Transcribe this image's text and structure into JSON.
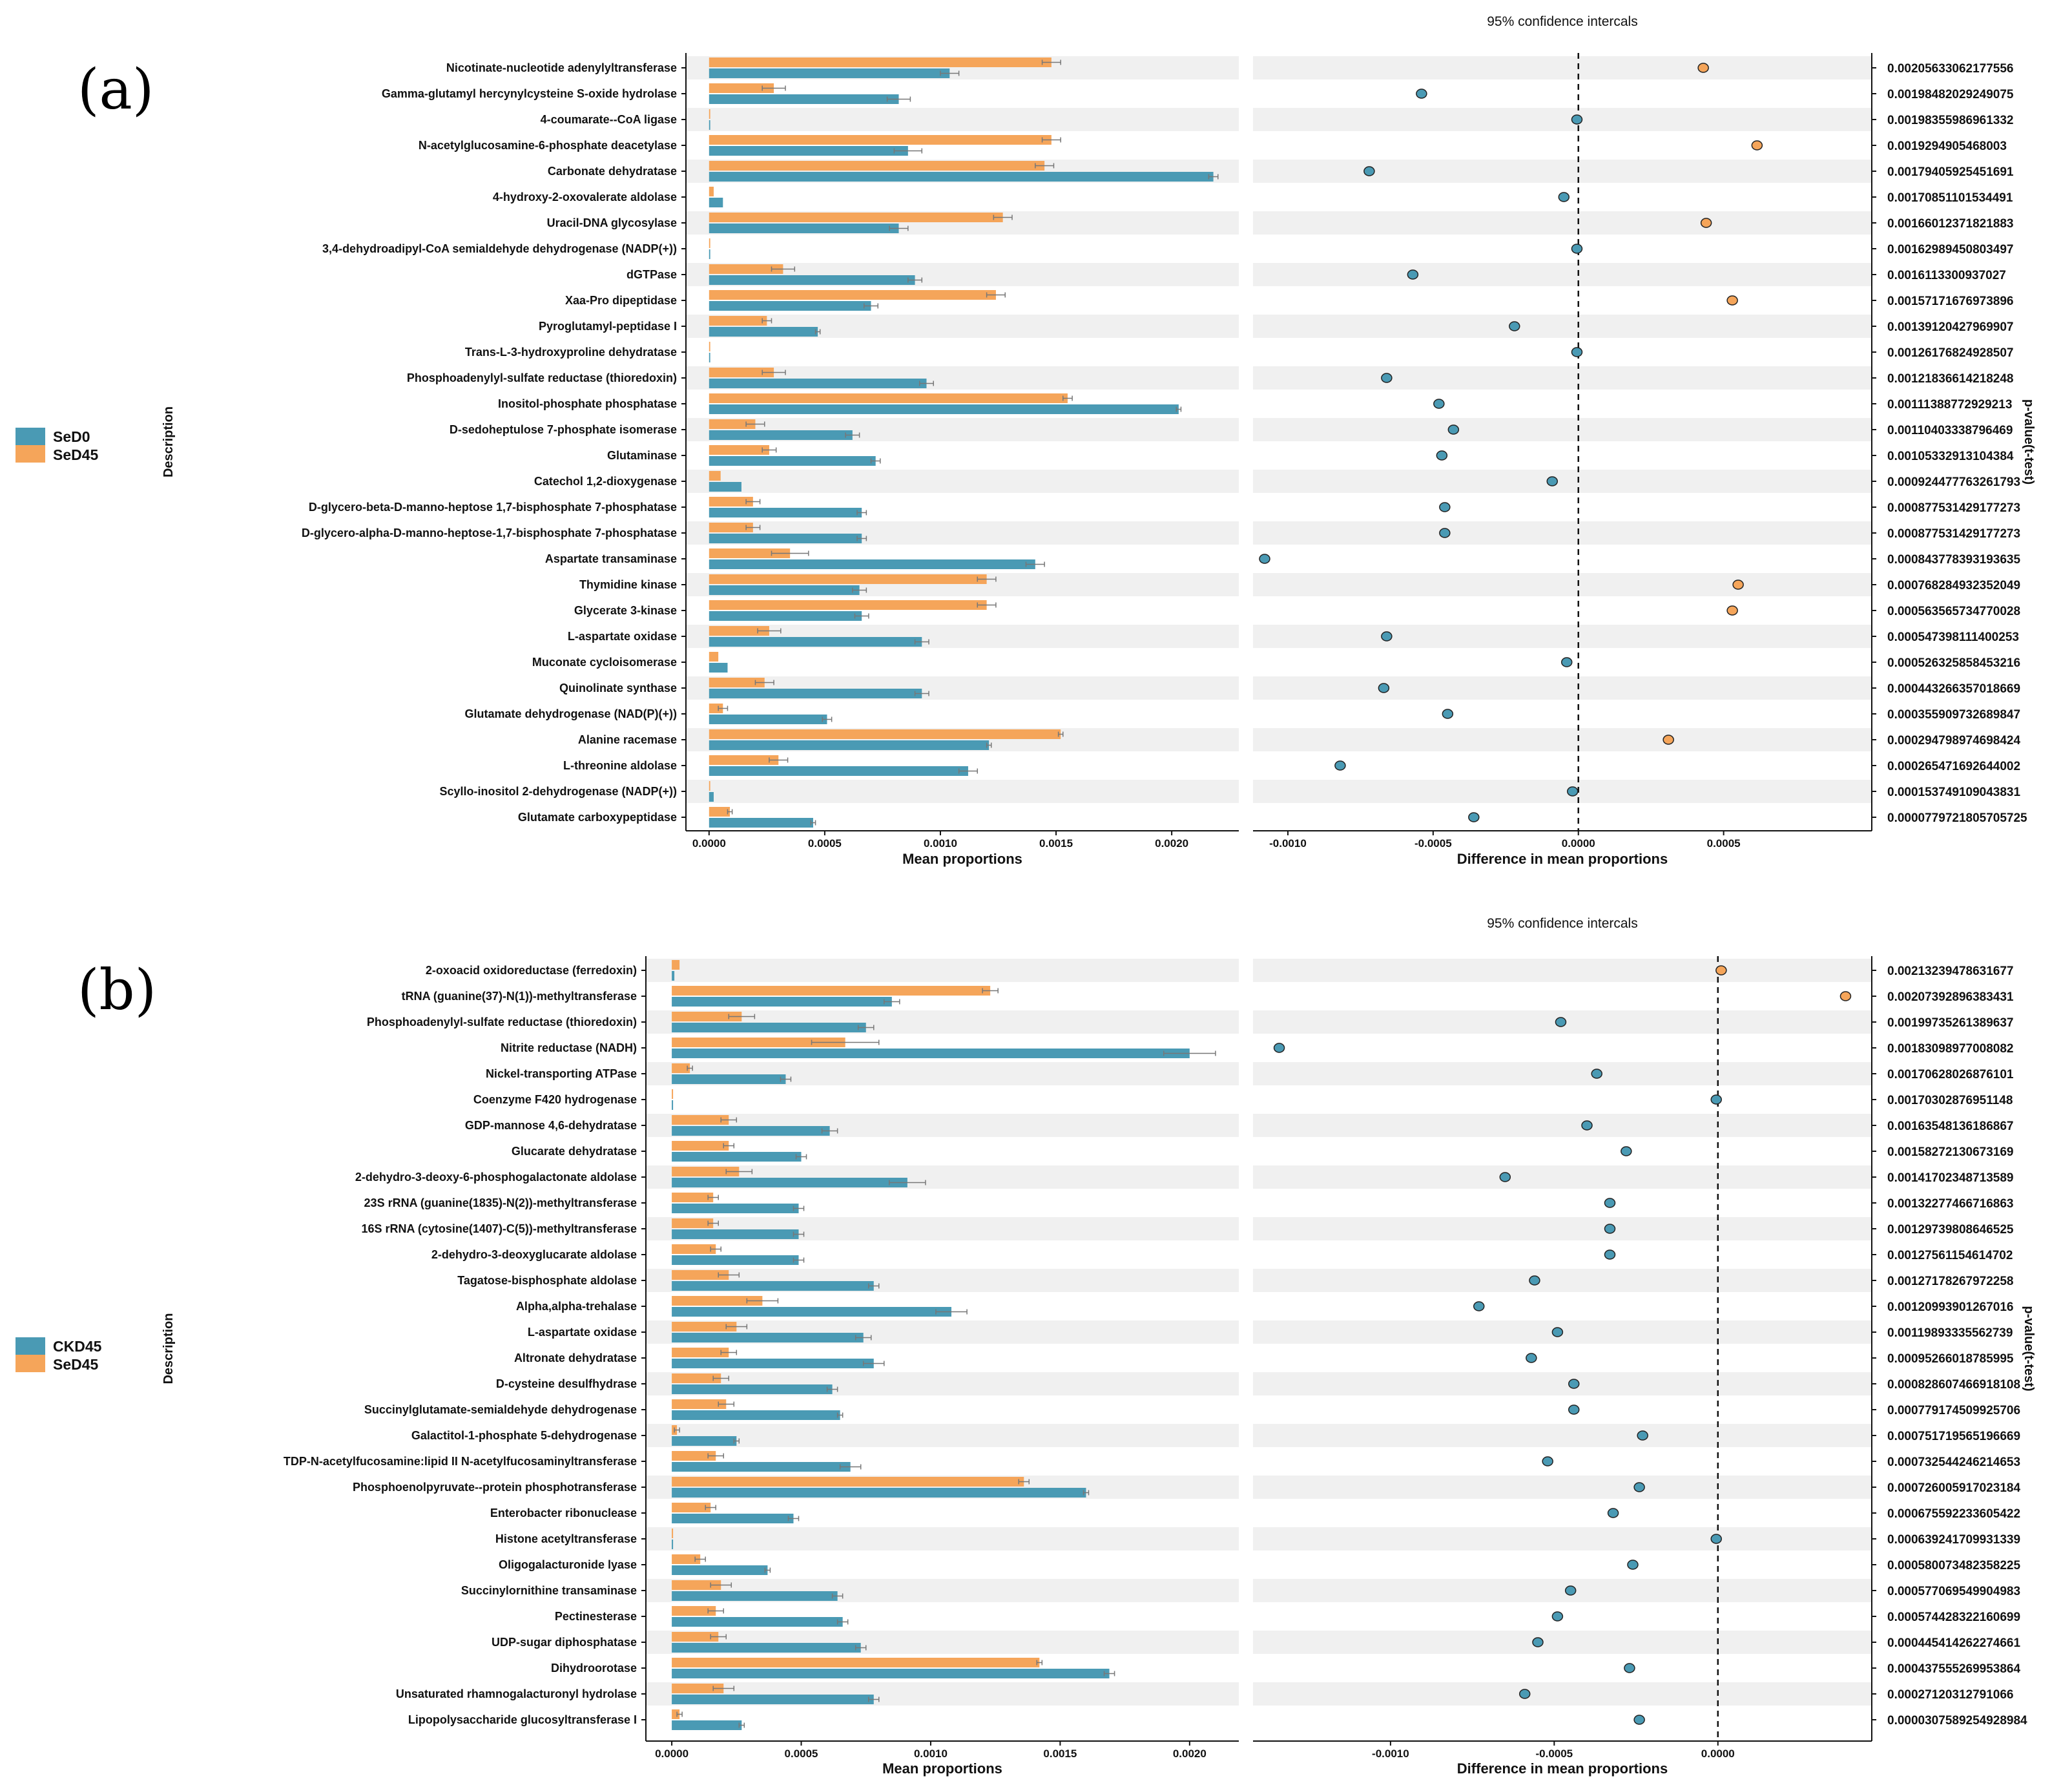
{
  "figure": {
    "colors": {
      "group1": "#4a9ab4",
      "group2": "#f5a55a",
      "stripe": "#f0f0f0",
      "ink": "#111111"
    },
    "panels": [
      {
        "letter": "(a)",
        "ci_title": "95% confidence intercals",
        "left_ylabel": "Description",
        "right_ylabel": "p-value(t-test)",
        "legend": [
          "SeD0",
          "SeD45"
        ]
      },
      {
        "letter": "(b)",
        "ci_title": "95% confidence intercals",
        "left_ylabel": "Description",
        "right_ylabel": "p-value(t-test)",
        "legend": [
          "CKD45",
          "SeD45"
        ]
      }
    ]
  },
  "chart_data": [
    {
      "type": "bar",
      "panel": "(a)",
      "xlabel": "Mean proportions",
      "xlim": [
        -0.0001,
        0.00229
      ],
      "xticks": [
        "0.0000",
        "0.0005",
        "0.0010",
        "0.0015",
        "0.0020"
      ],
      "xtick_values": [
        0,
        0.0005,
        0.001,
        0.0015,
        0.002
      ],
      "categories": [
        "Nicotinate-nucleotide adenylyltransferase",
        "Gamma-glutamyl hercynylcysteine S-oxide hydrolase",
        "4-coumarate--CoA ligase",
        "N-acetylglucosamine-6-phosphate deacetylase",
        "Carbonate dehydratase",
        "4-hydroxy-2-oxovalerate aldolase",
        "Uracil-DNA glycosylase",
        "3,4-dehydroadipyl-CoA semialdehyde dehydrogenase (NADP(+))",
        "dGTPase",
        "Xaa-Pro dipeptidase",
        "Pyroglutamyl-peptidase I",
        "Trans-L-3-hydroxyproline dehydratase",
        "Phosphoadenylyl-sulfate reductase (thioredoxin)",
        "Inositol-phosphate phosphatase",
        "D-sedoheptulose 7-phosphate isomerase",
        "Glutaminase",
        "Catechol 1,2-dioxygenase",
        "D-glycero-beta-D-manno-heptose 1,7-bisphosphate 7-phosphatase",
        "D-glycero-alpha-D-manno-heptose-1,7-bisphosphate 7-phosphatase",
        "Aspartate transaminase",
        "Thymidine kinase",
        "Glycerate 3-kinase",
        "L-aspartate oxidase",
        "Muconate cycloisomerase",
        "Quinolinate synthase",
        "Glutamate dehydrogenase (NAD(P)(+))",
        "Alanine racemase",
        "L-threonine aldolase",
        "Scyllo-inositol 2-dehydrogenase (NADP(+))",
        "Glutamate carboxypeptidase"
      ],
      "series": [
        {
          "name": "SeD0",
          "values": [
            0.00104,
            0.00082,
            5e-06,
            0.00086,
            0.00218,
            6e-05,
            0.00082,
            5e-06,
            0.00089,
            0.0007,
            0.00047,
            5e-06,
            0.00094,
            0.00203,
            0.00062,
            0.00072,
            0.00014,
            0.00066,
            0.00066,
            0.00141,
            0.00065,
            0.00066,
            0.00092,
            8e-05,
            0.00092,
            0.00051,
            0.00121,
            0.00112,
            2e-05,
            0.00045
          ]
        },
        {
          "name": "SeD45",
          "values": [
            0.00148,
            0.00028,
            5e-06,
            0.00148,
            0.00145,
            2e-05,
            0.00127,
            5e-06,
            0.00032,
            0.00124,
            0.00025,
            5e-06,
            0.00028,
            0.00155,
            0.0002,
            0.00026,
            5e-05,
            0.00019,
            0.00019,
            0.00035,
            0.0012,
            0.0012,
            0.00026,
            4e-05,
            0.00024,
            6e-05,
            0.00152,
            0.0003,
            5e-06,
            9e-05
          ]
        }
      ],
      "errors": {
        "SeD0": [
          4e-05,
          5e-05,
          0,
          6e-05,
          2e-05,
          0,
          4e-05,
          0,
          3e-05,
          3e-05,
          1e-05,
          0,
          3e-05,
          1e-05,
          3e-05,
          2e-05,
          0,
          2e-05,
          2e-05,
          4e-05,
          3e-05,
          3e-05,
          3e-05,
          0,
          3e-05,
          2e-05,
          1e-05,
          4e-05,
          0,
          1e-05
        ],
        "SeD45": [
          4e-05,
          5e-05,
          0,
          4e-05,
          4e-05,
          0,
          4e-05,
          0,
          5e-05,
          4e-05,
          2e-05,
          0,
          5e-05,
          2e-05,
          4e-05,
          3e-05,
          0,
          3e-05,
          3e-05,
          8e-05,
          4e-05,
          4e-05,
          5e-05,
          0,
          4e-05,
          2e-05,
          1e-05,
          4e-05,
          0,
          1e-05
        ]
      },
      "diff": {
        "xlabel": "Difference in mean proportions",
        "xlim": [
          -0.00112,
          0.00101
        ],
        "xticks": [
          "-0.0010",
          "-0.0005",
          "0.0000",
          "0.0005"
        ],
        "xtick_values": [
          -0.001,
          -0.0005,
          0,
          0.0005
        ],
        "values": [
          0.00043,
          -0.00054,
          -5e-06,
          0.000615,
          -0.00072,
          -5e-05,
          0.00044,
          -5e-06,
          -0.00057,
          0.00053,
          -0.00022,
          -5e-06,
          -0.00066,
          -0.00048,
          -0.00043,
          -0.00047,
          -9e-05,
          -0.00046,
          -0.00046,
          -0.00108,
          0.00055,
          0.00053,
          -0.00066,
          -4e-05,
          -0.00067,
          -0.00045,
          0.00031,
          -0.00082,
          -2e-05,
          -0.00036
        ],
        "group": [
          "SeD45",
          "SeD0",
          "SeD0",
          "SeD45",
          "SeD0",
          "SeD0",
          "SeD45",
          "SeD0",
          "SeD0",
          "SeD45",
          "SeD0",
          "SeD0",
          "SeD0",
          "SeD0",
          "SeD0",
          "SeD0",
          "SeD0",
          "SeD0",
          "SeD0",
          "SeD0",
          "SeD45",
          "SeD45",
          "SeD0",
          "SeD0",
          "SeD0",
          "SeD0",
          "SeD45",
          "SeD0",
          "SeD0",
          "SeD0"
        ]
      },
      "pvalues": [
        "0.00205633062177556",
        "0.00198482029249075",
        "0.00198355986961332",
        "0.0019294905468003",
        "0.00179405925451691",
        "0.00170851101534491",
        "0.00166012371821883",
        "0.00162989450803497",
        "0.0016113300937027",
        "0.00157171676973896",
        "0.00139120427969907",
        "0.00126176824928507",
        "0.00121836614218248",
        "0.00111388772929213",
        "0.00110403338796469",
        "0.00105332913104384",
        "0.00092447776326179​3",
        "0.000877531429177273",
        "0.000877531429177273",
        "0.000843778393193635",
        "0.000768284932352049",
        "0.00056356573477002​8",
        "0.000547398111400253",
        "0.000526325858453216",
        "0.000443266357018669",
        "0.000355909732689847",
        "0.000294798974698424",
        "0.000265471692644002",
        "0.000153749109043831",
        "0.0000779721805705725"
      ]
    },
    {
      "type": "bar",
      "panel": "(b)",
      "xlabel": "Mean proportions",
      "xlim": [
        -0.0001,
        0.00219
      ],
      "xticks": [
        "0.0000",
        "0.0005",
        "0.0010",
        "0.0015",
        "0.0020"
      ],
      "xtick_values": [
        0,
        0.0005,
        0.001,
        0.0015,
        0.002
      ],
      "categories": [
        "2-oxoacid oxidoreductase (ferredoxin)",
        "tRNA (guanine(37)-N(1))-methyltransferase",
        "Phosphoadenylyl-sulfate reductase (thioredoxin)",
        "Nitrite reductase (NADH)",
        "Nickel-transporting ATPase",
        "Coenzyme F420 hydrogenase",
        "GDP-mannose 4,6-dehydratase",
        "Glucarate dehydratase",
        "2-dehydro-3-deoxy-6-phosphogalactonate aldolase",
        "23S rRNA (guanine(1835)-N(2))-methyltransferase",
        "16S rRNA (cytosine(1407)-C(5))-methyltransferase",
        "2-dehydro-3-deoxyglucarate aldolase",
        "Tagatose-bisphosphate aldolase",
        "Alpha,alpha-trehalase",
        "L-aspartate oxidase",
        "Altronate dehydratase",
        "D-cysteine desulfhydrase",
        "Succinylglutamate-semialdehyde dehydrogenase",
        "Galactitol-1-phosphate 5-dehydrogenase",
        "TDP-N-acetylfucosamine:lipid II N-acetylfucosaminyltransferase",
        "Phosphoenolpyruvate--protein phosphotransferase",
        "Enterobacter ribonuclease",
        "Histone acetyltransferase",
        "Oligogalacturonide lyase",
        "Succinylornithine transaminase",
        "Pectinesterase",
        "UDP-sugar diphosphatase",
        "Dihydroorotase",
        "Unsaturated rhamnogalacturonyl hydrolase",
        "Lipopolysaccharide glucosyltransferase I"
      ],
      "series": [
        {
          "name": "CKD45",
          "values": [
            1e-05,
            0.00085,
            0.00075,
            0.002,
            0.00044,
            5e-06,
            0.00061,
            0.0005,
            0.00091,
            0.00049,
            0.00049,
            0.00049,
            0.00078,
            0.00108,
            0.00074,
            0.00078,
            0.00062,
            0.00065,
            0.00025,
            0.00069,
            0.0016,
            0.00047,
            5e-06,
            0.00037,
            0.00064,
            0.00066,
            0.00073,
            0.00169,
            0.00078,
            0.00027
          ]
        },
        {
          "name": "SeD45",
          "values": [
            3e-05,
            0.00123,
            0.00027,
            0.00067,
            7e-05,
            5e-06,
            0.00022,
            0.00022,
            0.00026,
            0.00016,
            0.00016,
            0.00017,
            0.00022,
            0.00035,
            0.00025,
            0.00022,
            0.00019,
            0.00021,
            2e-05,
            0.00017,
            0.00136,
            0.00015,
            5e-06,
            0.00011,
            0.00019,
            0.00017,
            0.00018,
            0.00142,
            0.0002,
            3e-05
          ]
        }
      ],
      "errors": {
        "CKD45": [
          0,
          3e-05,
          3e-05,
          0.0001,
          2e-05,
          0,
          3e-05,
          2e-05,
          7e-05,
          2e-05,
          2e-05,
          2e-05,
          2e-05,
          6e-05,
          3e-05,
          4e-05,
          2e-05,
          1e-05,
          1e-05,
          4e-05,
          1e-05,
          2e-05,
          0,
          1e-05,
          2e-05,
          2e-05,
          2e-05,
          2e-05,
          2e-05,
          1e-05
        ],
        "CKD45_dummy": [],
        "SeD45": [
          0,
          3e-05,
          5e-05,
          0.00013,
          1e-05,
          0,
          3e-05,
          2e-05,
          5e-05,
          2e-05,
          2e-05,
          2e-05,
          4e-05,
          6e-05,
          4e-05,
          3e-05,
          3e-05,
          3e-05,
          1e-05,
          3e-05,
          2e-05,
          2e-05,
          0,
          2e-05,
          4e-05,
          3e-05,
          3e-05,
          1e-05,
          4e-05,
          1e-05
        ]
      },
      "diff": {
        "xlabel": "Difference in mean proportions",
        "xlim": [
          -0.00142,
          0.00047
        ],
        "xticks": [
          "-0.0010",
          "-0.0005",
          "0.0000"
        ],
        "xtick_values": [
          -0.001,
          -0.0005,
          0
        ],
        "values": [
          1e-05,
          0.00039,
          -0.00048,
          -0.00134,
          -0.00037,
          -5e-06,
          -0.0004,
          -0.00028,
          -0.00065,
          -0.00033,
          -0.00033,
          -0.00033,
          -0.00056,
          -0.00073,
          -0.00049,
          -0.00057,
          -0.00044,
          -0.00044,
          -0.00023,
          -0.00052,
          -0.00024,
          -0.00032,
          -5e-06,
          -0.00026,
          -0.00045,
          -0.00049,
          -0.00055,
          -0.00027,
          -0.00059,
          -0.00024
        ],
        "group": [
          "SeD45",
          "SeD45",
          "CKD45",
          "CKD45",
          "CKD45",
          "CKD45",
          "CKD45",
          "CKD45",
          "CKD45",
          "CKD45",
          "CKD45",
          "CKD45",
          "CKD45",
          "CKD45",
          "CKD45",
          "CKD45",
          "CKD45",
          "CKD45",
          "CKD45",
          "CKD45",
          "CKD45",
          "CKD45",
          "CKD45",
          "CKD45",
          "CKD45",
          "CKD45",
          "CKD45",
          "CKD45",
          "CKD45",
          "CKD45"
        ]
      },
      "pvalues": [
        "0.00213239478631677",
        "0.00207392896383431",
        "0.00199735261389637",
        "0.00183098977008082",
        "0.00170628026876101",
        "0.00170302876951148",
        "0.00163548136186867",
        "0.00158272130673169",
        "0.00141702348713589",
        "0.00132277466716863",
        "0.00129739808646525",
        "0.00127561154614702",
        "0.00127178267972258",
        "0.00120993901267016",
        "0.00119893335562739",
        "0.00095266018785995",
        "0.000828607466918108",
        "0.000779174509925706",
        "0.000751719565196669",
        "0.000732544246214653",
        "0.000726005917023184",
        "0.000675592233605422",
        "0.000639241709931339",
        "0.000580073482358225",
        "0.000577069549904983",
        "0.000574428322160699",
        "0.000445414262274661",
        "0.000437555269953864",
        "0.000271203127910​66",
        "0.0000307589254928984"
      ]
    }
  ]
}
